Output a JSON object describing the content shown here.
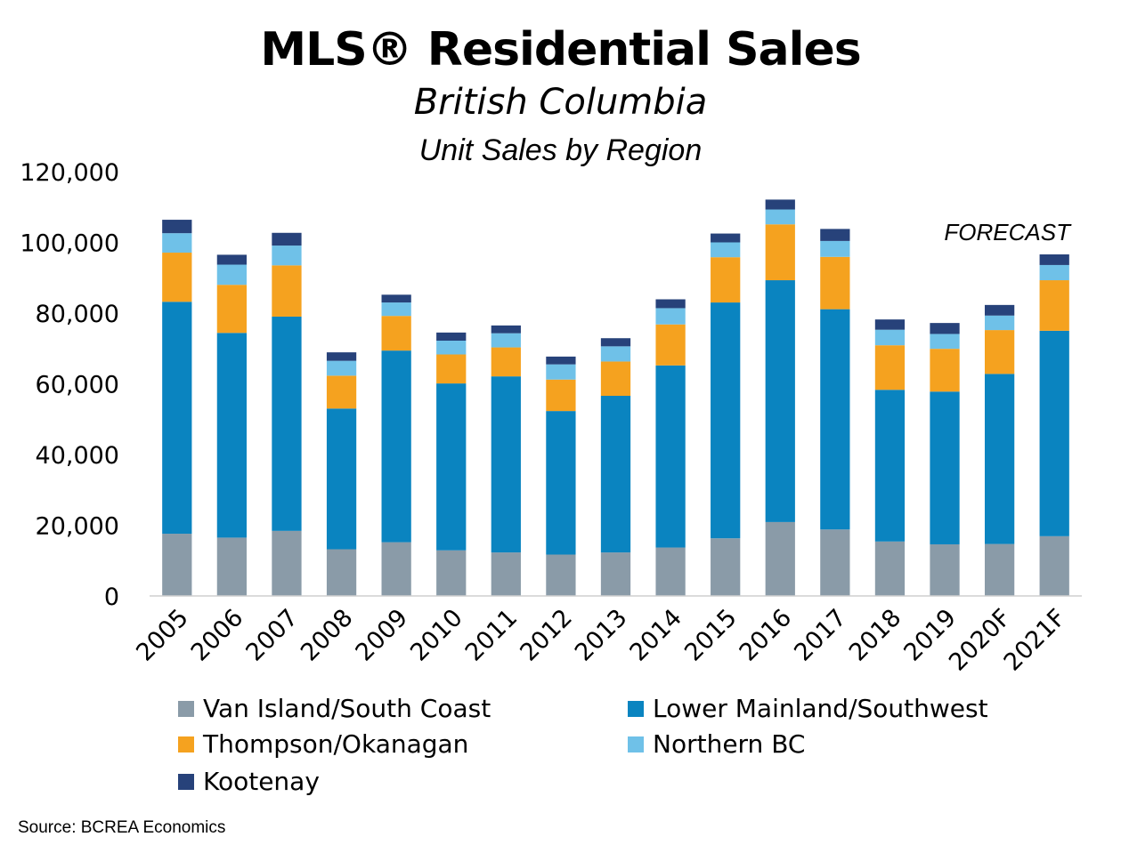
{
  "title": "MLS® Residential Sales",
  "subtitle": "British Columbia",
  "chart_subtitle": "Unit Sales by Region",
  "annotation": "FORECAST",
  "source": "Source: BCREA Economics",
  "chart_data": {
    "type": "bar",
    "stacked": true,
    "categories": [
      "2005",
      "2006",
      "2007",
      "2008",
      "2009",
      "2010",
      "2011",
      "2012",
      "2013",
      "2014",
      "2015",
      "2016",
      "2017",
      "2018",
      "2019",
      "2020F",
      "2021F"
    ],
    "ylim": [
      0,
      120000
    ],
    "yticks": [
      0,
      20000,
      40000,
      60000,
      80000,
      100000,
      120000
    ],
    "ytick_labels": [
      "0",
      "20,000",
      "40,000",
      "60,000",
      "80,000",
      "100,000",
      "120,000"
    ],
    "legend_position": "bottom",
    "grid": false,
    "series": [
      {
        "name": "Van Island/South Coast",
        "color": "#8a9ba8",
        "values": [
          17600,
          16500,
          18400,
          13200,
          15200,
          12900,
          12300,
          11700,
          12300,
          13700,
          16300,
          20900,
          18800,
          15400,
          14600,
          14700,
          16900
        ]
      },
      {
        "name": "Lower Mainland/Southwest",
        "color": "#0a84c0",
        "values": [
          65600,
          57900,
          60600,
          39800,
          54200,
          47200,
          49800,
          40600,
          44300,
          51500,
          66700,
          68400,
          62300,
          42900,
          43200,
          48100,
          58100
        ]
      },
      {
        "name": "Thompson/Okanagan",
        "color": "#f5a21f",
        "values": [
          13900,
          13600,
          14500,
          9300,
          9800,
          8200,
          8200,
          8900,
          9700,
          11600,
          12800,
          15800,
          14800,
          12600,
          12100,
          12400,
          14300
        ]
      },
      {
        "name": "Northern BC",
        "color": "#6fc1e8",
        "values": [
          5500,
          5700,
          5600,
          4200,
          3800,
          3900,
          4000,
          4300,
          4300,
          4600,
          4200,
          4200,
          4500,
          4400,
          4200,
          4100,
          4300
        ]
      },
      {
        "name": "Kootenay",
        "color": "#27427a",
        "values": [
          3800,
          2800,
          3600,
          2400,
          2200,
          2300,
          2200,
          2200,
          2300,
          2500,
          2500,
          2800,
          3400,
          2900,
          3100,
          3000,
          3000
        ]
      }
    ]
  }
}
